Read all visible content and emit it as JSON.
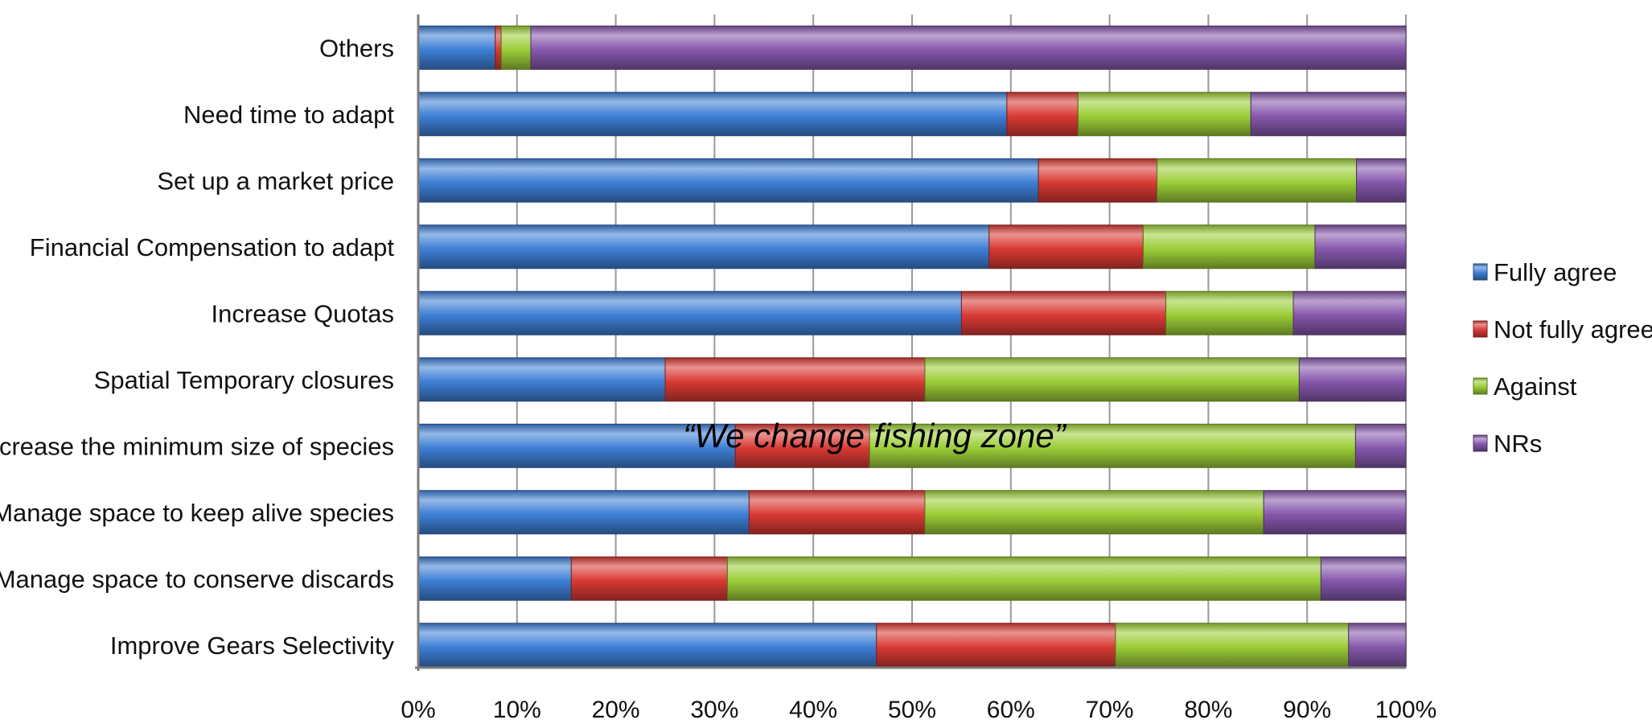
{
  "chart_data": {
    "type": "bar",
    "orientation": "horizontal",
    "stacked": "percent",
    "categories": [
      "Others",
      "Need time to adapt",
      "Set up a market price",
      "Financial Compensation to adapt",
      "Increase Quotas",
      "Spatial Temporary closures",
      "Decrease the minimum size of species",
      "Manage space to keep alive species",
      "Manage space to conserve discards",
      "Improve Gears Selectivity"
    ],
    "series": [
      {
        "name": "Fully agree",
        "color": "#3e7fd6",
        "values": [
          7.8,
          59.6,
          62.8,
          57.8,
          55.0,
          25.0,
          32.1,
          33.5,
          15.5,
          46.4
        ]
      },
      {
        "name": "Not fully agree",
        "color": "#d93a34",
        "values": [
          0.6,
          7.2,
          12.0,
          15.6,
          20.7,
          26.3,
          13.6,
          17.8,
          15.8,
          24.2
        ]
      },
      {
        "name": "Against",
        "color": "#9ccd38",
        "values": [
          3.0,
          17.5,
          20.2,
          17.4,
          12.9,
          37.9,
          49.2,
          34.3,
          60.1,
          23.6
        ]
      },
      {
        "name": "NRs",
        "color": "#8658ac",
        "values": [
          88.6,
          15.7,
          5.0,
          9.2,
          11.4,
          10.8,
          5.1,
          14.4,
          8.6,
          5.8
        ]
      }
    ],
    "xlim": [
      0,
      100
    ],
    "xticks": [
      "0%",
      "10%",
      "20%",
      "30%",
      "40%",
      "50%",
      "60%",
      "70%",
      "80%",
      "90%",
      "100%"
    ],
    "grid": true,
    "legend_position": "right",
    "annotation": "“We change fishing zone”",
    "title": "",
    "xlabel": "",
    "ylabel": ""
  }
}
